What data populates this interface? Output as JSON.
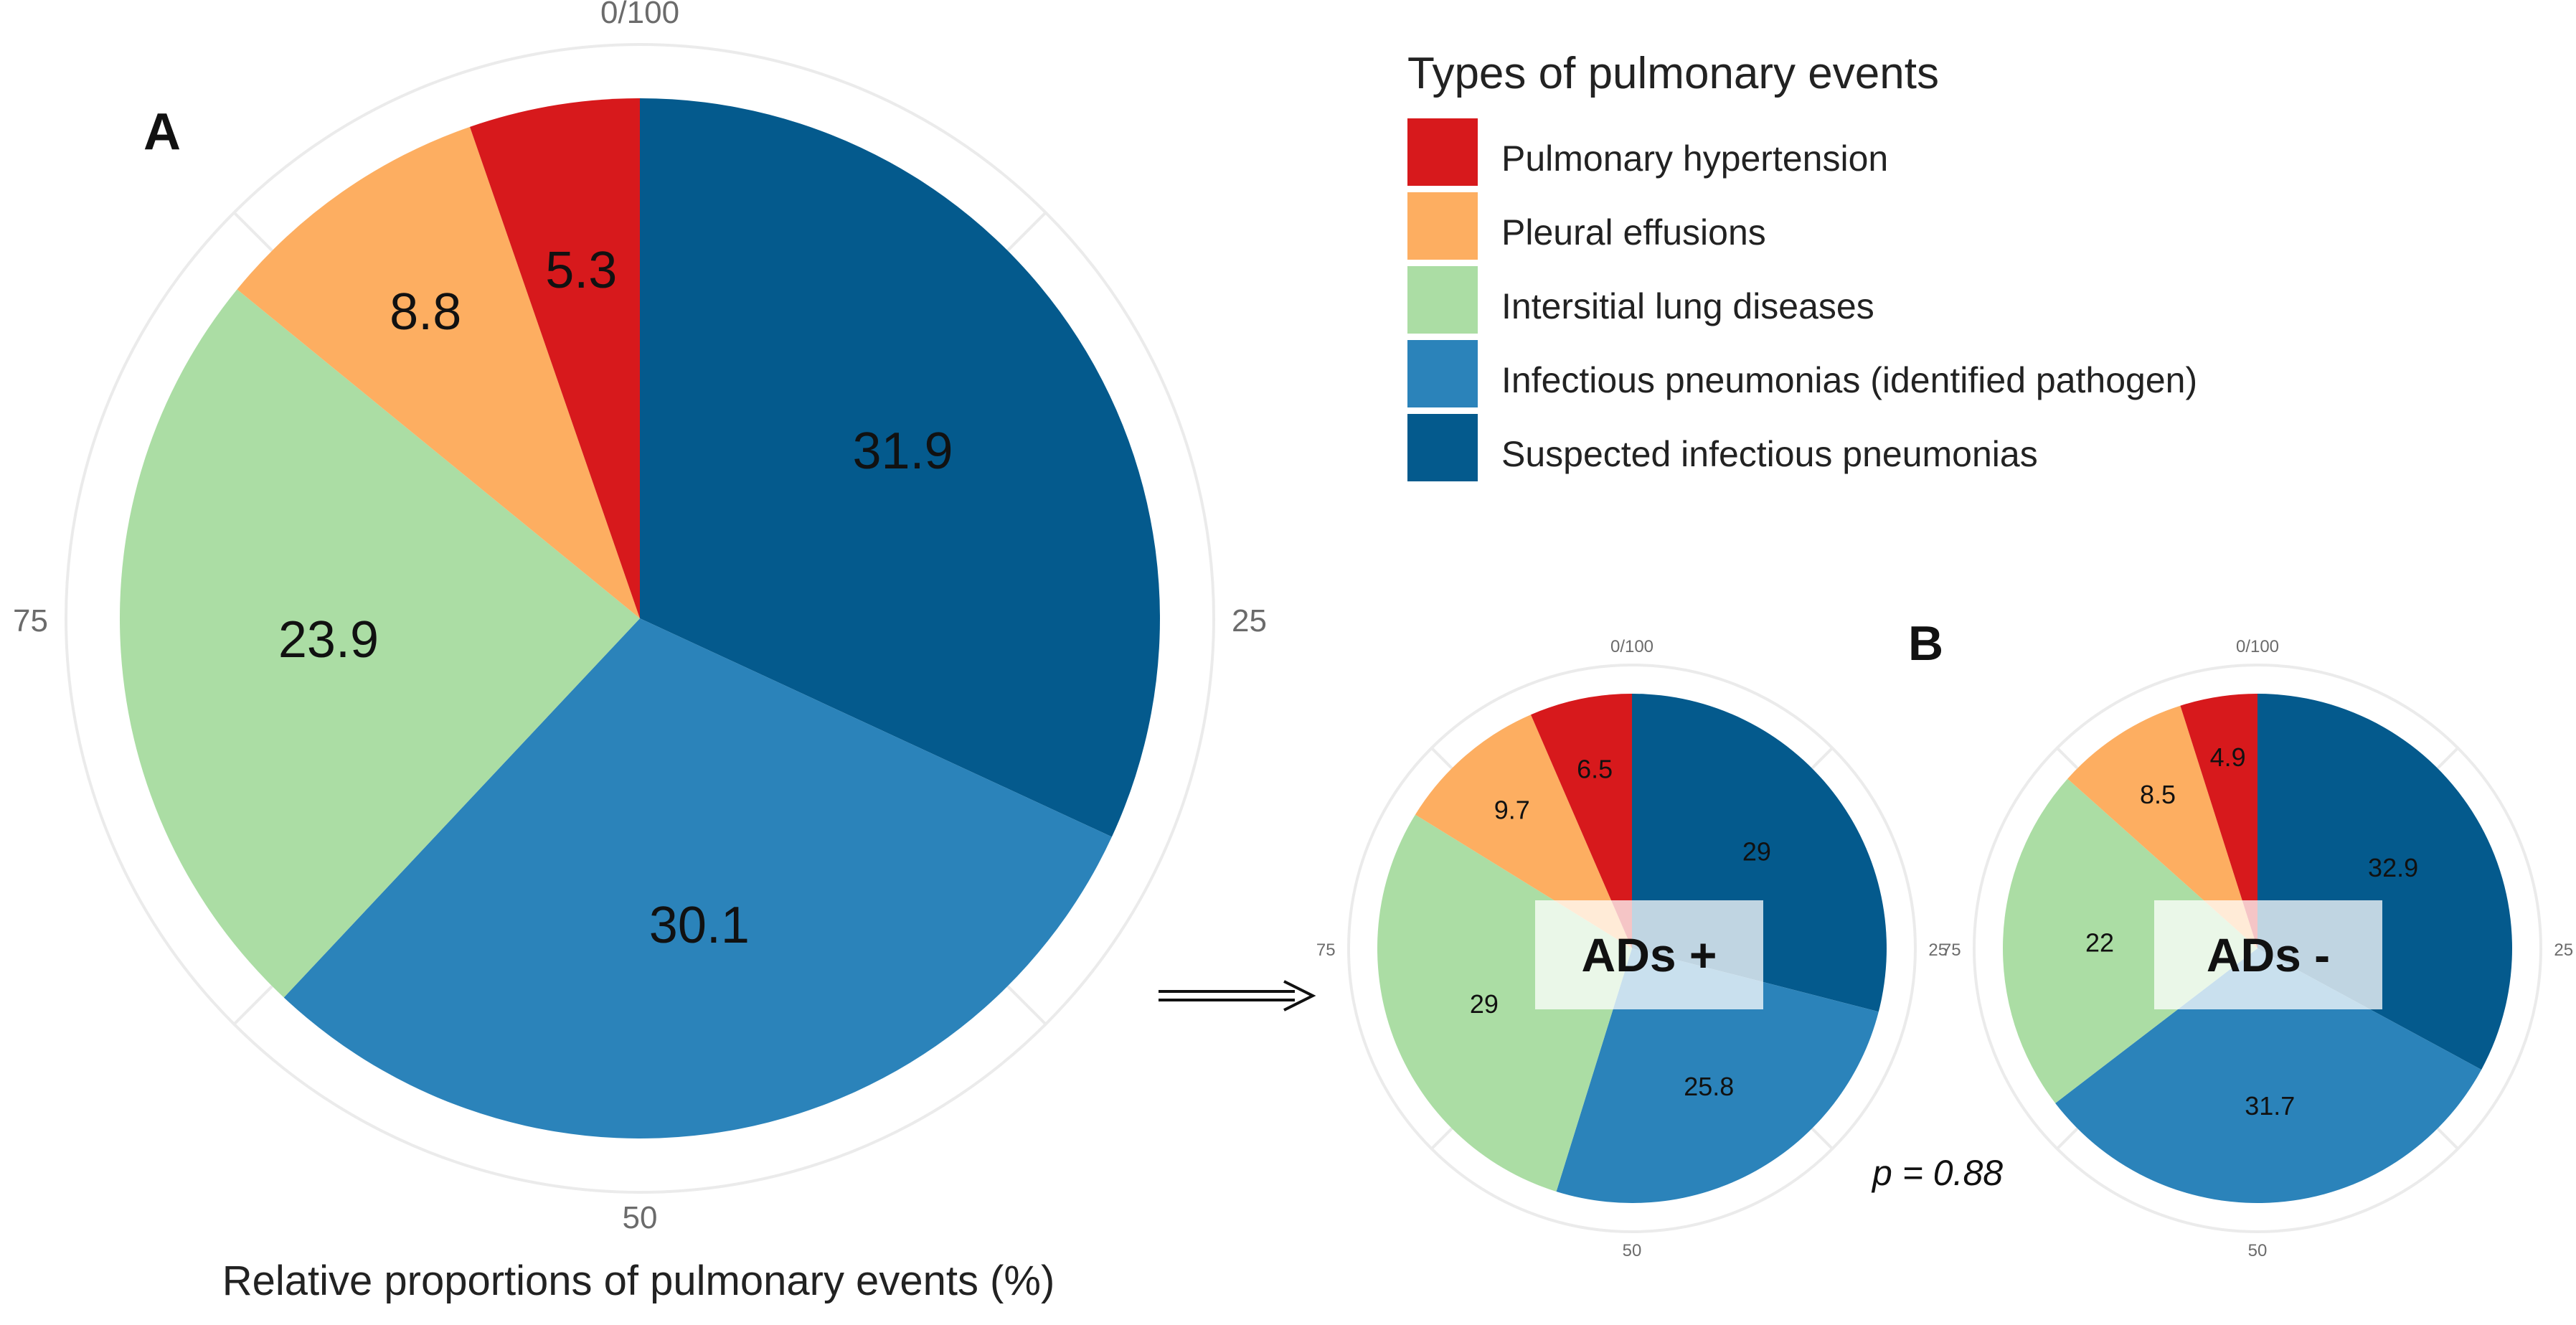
{
  "colors": {
    "pulmonary_hypertension": "#d7191c",
    "pleural_effusions": "#fdae61",
    "interstitial": "#abdda4",
    "infectious_identified": "#2b83ba",
    "suspected_infectious": "#045a8d",
    "grid": "#ebebeb"
  },
  "figure": {
    "panel_a": "A",
    "panel_b": "B",
    "xlabel": "Relative proportions of pulmonary events (%)",
    "p_value": "p = 0.88"
  },
  "legend": {
    "title": "Types of pulmonary events",
    "items": [
      {
        "label": "Pulmonary hypertension",
        "color_key": "pulmonary_hypertension"
      },
      {
        "label": "Pleural effusions",
        "color_key": "pleural_effusions"
      },
      {
        "label": "Intersitial lung diseases",
        "color_key": "interstitial"
      },
      {
        "label": "Infectious pneumonias (identified pathogen)",
        "color_key": "infectious_identified"
      },
      {
        "label": "Suspected infectious pneumonias",
        "color_key": "suspected_infectious"
      }
    ]
  },
  "chart_data": [
    {
      "type": "pie",
      "id": "overall",
      "panel": "A",
      "title": "",
      "xlabel": "Relative proportions of pulmonary events (%)",
      "angular_ticks": [
        "0/100",
        "25",
        "50",
        "75"
      ],
      "categories": [
        "Suspected infectious pneumonias",
        "Infectious pneumonias (identified pathogen)",
        "Intersitial lung diseases",
        "Pleural effusions",
        "Pulmonary hypertension"
      ],
      "values": [
        31.9,
        30.1,
        23.9,
        8.8,
        5.3
      ],
      "value_labels": [
        "31.9",
        "30.1",
        "23.9",
        "8.8",
        "5.3"
      ]
    },
    {
      "type": "pie",
      "id": "ads_plus",
      "panel": "B",
      "group_label": "ADs +",
      "angular_ticks": [
        "0/100",
        "25",
        "50",
        "75"
      ],
      "categories": [
        "Suspected infectious pneumonias",
        "Infectious pneumonias (identified pathogen)",
        "Intersitial lung diseases",
        "Pleural effusions",
        "Pulmonary hypertension"
      ],
      "values": [
        29,
        25.8,
        29,
        9.7,
        6.5
      ],
      "value_labels": [
        "29",
        "25.8",
        "29",
        "9.7",
        "6.5"
      ]
    },
    {
      "type": "pie",
      "id": "ads_minus",
      "panel": "B",
      "group_label": "ADs -",
      "angular_ticks": [
        "0/100",
        "25",
        "50",
        "75"
      ],
      "categories": [
        "Suspected infectious pneumonias",
        "Infectious pneumonias (identified pathogen)",
        "Intersitial lung diseases",
        "Pleural effusions",
        "Pulmonary hypertension"
      ],
      "values": [
        32.9,
        31.7,
        22,
        8.5,
        4.9
      ],
      "value_labels": [
        "32.9",
        "31.7",
        "22",
        "8.5",
        "4.9"
      ]
    }
  ]
}
